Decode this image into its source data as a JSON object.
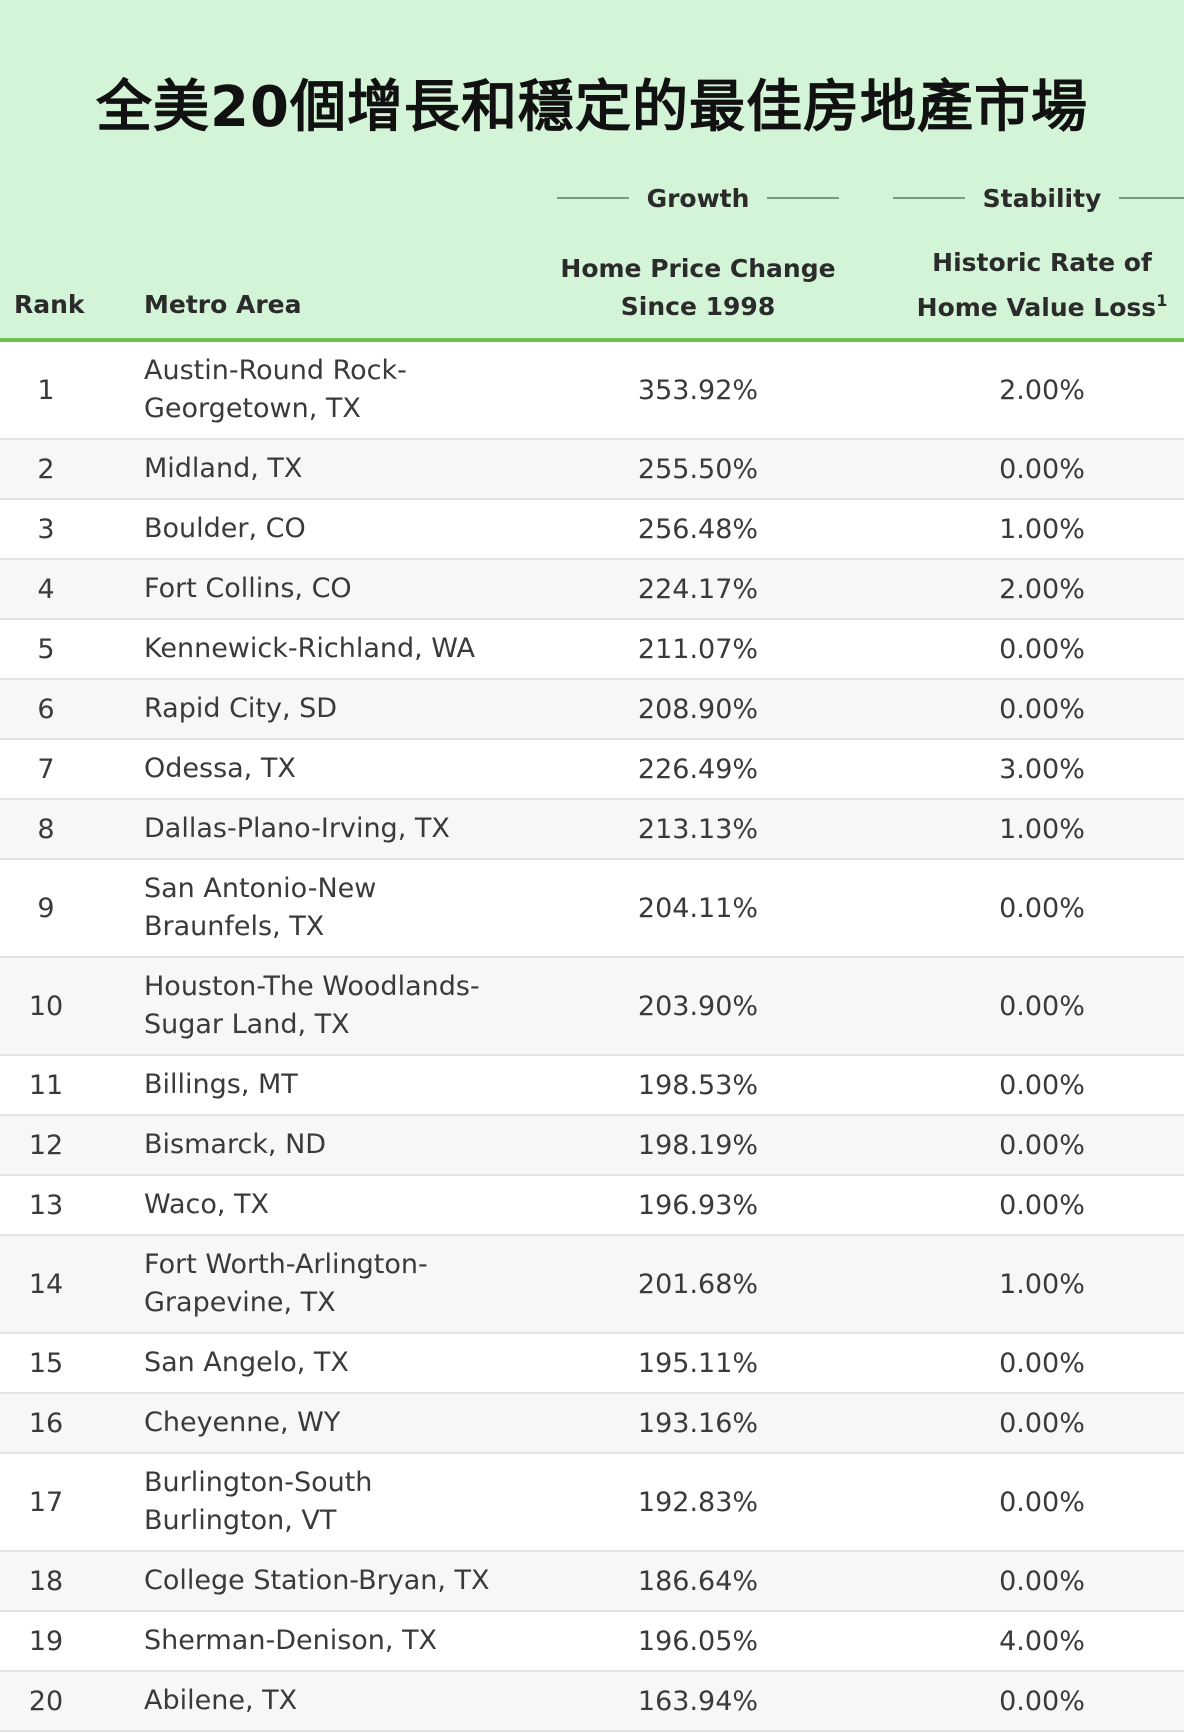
{
  "title": "全美20個增長和穩定的最佳房地產市場",
  "groups": {
    "growth": "Growth",
    "stability": "Stability"
  },
  "columns": {
    "rank": "Rank",
    "metro": "Metro Area",
    "price_line1": "Home Price Change",
    "price_line2": "Since 1998",
    "loss_line1": "Historic Rate of",
    "loss_line2": "Home Value Loss",
    "loss_footnote": "1"
  },
  "rows": [
    {
      "rank": "1",
      "metro": "Austin-Round Rock-Georgetown, TX",
      "metro_l1": "Austin-Round Rock-",
      "metro_l2": "Georgetown, TX",
      "price": "353.92%",
      "loss": "2.00%"
    },
    {
      "rank": "2",
      "metro": "Midland, TX",
      "price": "255.50%",
      "loss": "0.00%"
    },
    {
      "rank": "3",
      "metro": "Boulder, CO",
      "price": "256.48%",
      "loss": "1.00%"
    },
    {
      "rank": "4",
      "metro": "Fort Collins, CO",
      "price": "224.17%",
      "loss": "2.00%"
    },
    {
      "rank": "5",
      "metro": "Kennewick-Richland, WA",
      "price": "211.07%",
      "loss": "0.00%"
    },
    {
      "rank": "6",
      "metro": "Rapid City, SD",
      "price": "208.90%",
      "loss": "0.00%"
    },
    {
      "rank": "7",
      "metro": "Odessa, TX",
      "price": "226.49%",
      "loss": "3.00%"
    },
    {
      "rank": "8",
      "metro": "Dallas-Plano-Irving, TX",
      "price": "213.13%",
      "loss": "1.00%"
    },
    {
      "rank": "9",
      "metro": "San Antonio-New Braunfels, TX",
      "metro_l1": "San Antonio-New",
      "metro_l2": "Braunfels, TX",
      "price": "204.11%",
      "loss": "0.00%"
    },
    {
      "rank": "10",
      "metro": "Houston-The Woodlands-Sugar Land, TX",
      "metro_l1": "Houston-The Woodlands-",
      "metro_l2": "Sugar Land, TX",
      "price": "203.90%",
      "loss": "0.00%"
    },
    {
      "rank": "11",
      "metro": "Billings, MT",
      "price": "198.53%",
      "loss": "0.00%"
    },
    {
      "rank": "12",
      "metro": "Bismarck, ND",
      "price": "198.19%",
      "loss": "0.00%"
    },
    {
      "rank": "13",
      "metro": "Waco, TX",
      "price": "196.93%",
      "loss": "0.00%"
    },
    {
      "rank": "14",
      "metro": "Fort Worth-Arlington-Grapevine, TX",
      "metro_l1": "Fort Worth-Arlington-",
      "metro_l2": "Grapevine, TX",
      "price": "201.68%",
      "loss": "1.00%"
    },
    {
      "rank": "15",
      "metro": "San Angelo, TX",
      "price": "195.11%",
      "loss": "0.00%"
    },
    {
      "rank": "16",
      "metro": "Cheyenne, WY",
      "price": "193.16%",
      "loss": "0.00%"
    },
    {
      "rank": "17",
      "metro": "Burlington-South Burlington, VT",
      "metro_l1": "Burlington-South",
      "metro_l2": "Burlington, VT",
      "price": "192.83%",
      "loss": "0.00%"
    },
    {
      "rank": "18",
      "metro": "College Station-Bryan, TX",
      "price": "186.64%",
      "loss": "0.00%"
    },
    {
      "rank": "19",
      "metro": "Sherman-Denison, TX",
      "price": "196.05%",
      "loss": "4.00%"
    },
    {
      "rank": "20",
      "metro": "Abilene, TX",
      "price": "163.94%",
      "loss": "0.00%"
    }
  ]
}
